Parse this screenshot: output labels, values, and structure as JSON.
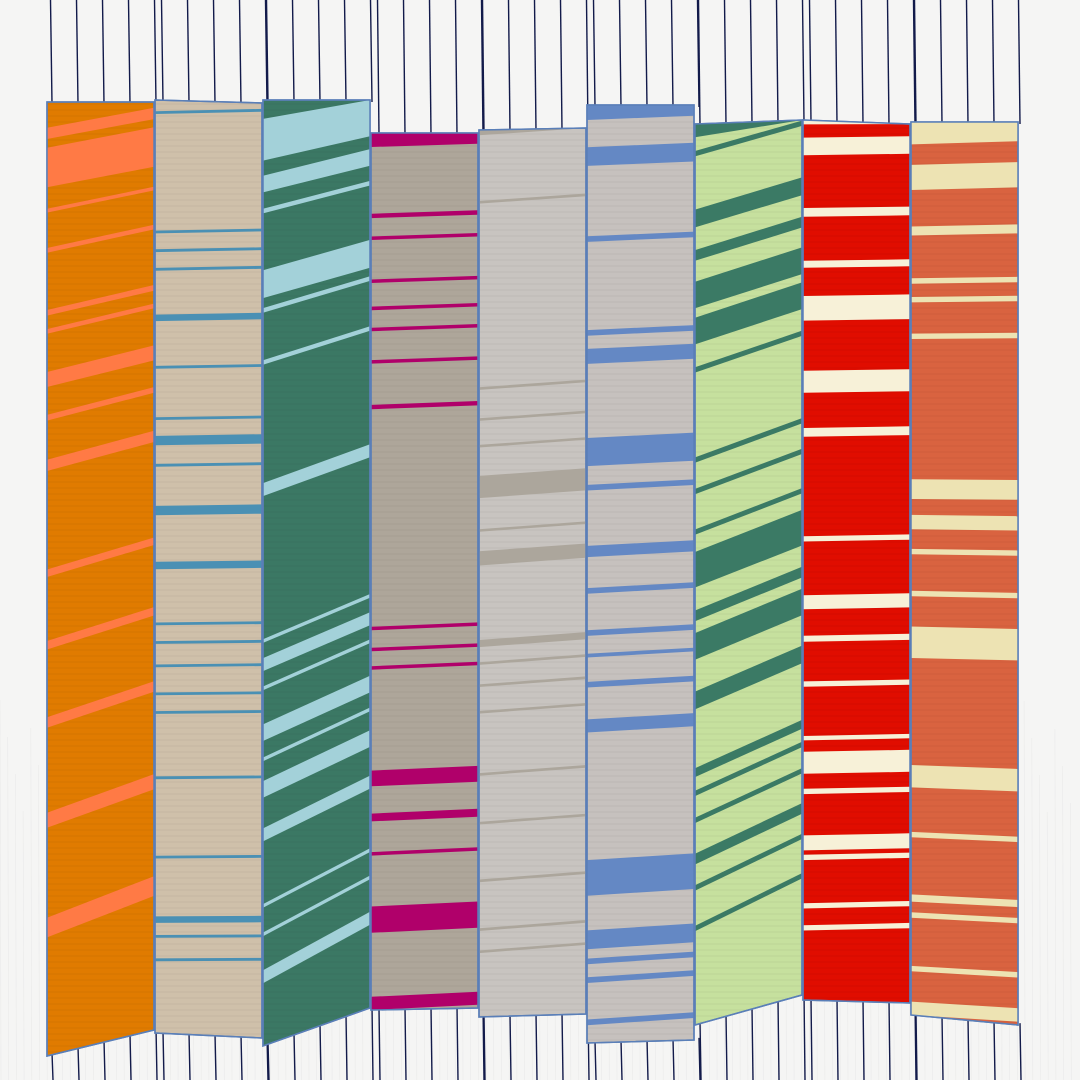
{
  "background": "#f5f5f4",
  "line_color": "#121a4a",
  "panel_border": "#5a7fb8",
  "panels": [
    {
      "name": "orange-panel",
      "base": "#e07b00",
      "stripe": "#ff7a45",
      "stripes": [
        [
          0.027,
          0.012
        ],
        [
          0.048,
          0.042
        ],
        [
          0.112,
          0.004
        ],
        [
          0.153,
          0.005
        ],
        [
          0.218,
          0.006
        ],
        [
          0.238,
          0.005
        ],
        [
          0.283,
          0.016
        ],
        [
          0.328,
          0.006
        ],
        [
          0.375,
          0.012
        ],
        [
          0.49,
          0.008
        ],
        [
          0.565,
          0.009
        ],
        [
          0.645,
          0.011
        ],
        [
          0.745,
          0.016
        ],
        [
          0.855,
          0.021
        ]
      ]
    },
    {
      "name": "tan-panel",
      "base": "#cfc0aa",
      "stripe": "#4a90b4",
      "stripes": [
        [
          0.012,
          0.003
        ],
        [
          0.14,
          0.003
        ],
        [
          0.16,
          0.003
        ],
        [
          0.18,
          0.003
        ],
        [
          0.23,
          0.007
        ],
        [
          0.285,
          0.003
        ],
        [
          0.34,
          0.003
        ],
        [
          0.36,
          0.01
        ],
        [
          0.39,
          0.003
        ],
        [
          0.435,
          0.01
        ],
        [
          0.495,
          0.008
        ],
        [
          0.56,
          0.003
        ],
        [
          0.58,
          0.003
        ],
        [
          0.605,
          0.003
        ],
        [
          0.635,
          0.003
        ],
        [
          0.655,
          0.003
        ],
        [
          0.725,
          0.003
        ],
        [
          0.81,
          0.003
        ],
        [
          0.875,
          0.007
        ],
        [
          0.895,
          0.003
        ],
        [
          0.92,
          0.003
        ]
      ]
    },
    {
      "name": "green-panel",
      "base": "#3b7864",
      "stripe": "#a3d1d9",
      "stripes": [
        [
          0.02,
          0.045
        ],
        [
          0.08,
          0.018
        ],
        [
          0.115,
          0.005
        ],
        [
          0.18,
          0.03
        ],
        [
          0.22,
          0.005
        ],
        [
          0.275,
          0.005
        ],
        [
          0.405,
          0.014
        ],
        [
          0.57,
          0.004
        ],
        [
          0.59,
          0.014
        ],
        [
          0.62,
          0.004
        ],
        [
          0.66,
          0.018
        ],
        [
          0.695,
          0.004
        ],
        [
          0.72,
          0.018
        ],
        [
          0.77,
          0.014
        ],
        [
          0.85,
          0.004
        ],
        [
          0.88,
          0.004
        ],
        [
          0.92,
          0.014
        ]
      ]
    },
    {
      "name": "taupe-panel",
      "base": "#aea69a",
      "stripe": "#b0006a",
      "stripes": [
        [
          0.0,
          0.016
        ],
        [
          0.092,
          0.005
        ],
        [
          0.118,
          0.004
        ],
        [
          0.167,
          0.004
        ],
        [
          0.198,
          0.004
        ],
        [
          0.222,
          0.004
        ],
        [
          0.259,
          0.004
        ],
        [
          0.31,
          0.005
        ],
        [
          0.563,
          0.004
        ],
        [
          0.587,
          0.004
        ],
        [
          0.608,
          0.004
        ],
        [
          0.727,
          0.018
        ],
        [
          0.776,
          0.009
        ],
        [
          0.82,
          0.004
        ],
        [
          0.882,
          0.03
        ],
        [
          0.985,
          0.015
        ]
      ]
    },
    {
      "name": "gray-panel",
      "base": "#c8c4c0",
      "stripe": "#aca69c",
      "stripes": [
        [
          0.0,
          0.006
        ],
        [
          0.08,
          0.003
        ],
        [
          0.29,
          0.003
        ],
        [
          0.325,
          0.003
        ],
        [
          0.355,
          0.003
        ],
        [
          0.39,
          0.025
        ],
        [
          0.45,
          0.003
        ],
        [
          0.475,
          0.016
        ],
        [
          0.575,
          0.008
        ],
        [
          0.6,
          0.003
        ],
        [
          0.625,
          0.003
        ],
        [
          0.655,
          0.003
        ],
        [
          0.725,
          0.003
        ],
        [
          0.78,
          0.003
        ],
        [
          0.845,
          0.003
        ],
        [
          0.9,
          0.003
        ],
        [
          0.925,
          0.003
        ]
      ]
    },
    {
      "name": "gray-blue-panel",
      "base": "#c6c1be",
      "stripe": "#6488c4",
      "stripes": [
        [
          0.0,
          0.016
        ],
        [
          0.045,
          0.02
        ],
        [
          0.14,
          0.006
        ],
        [
          0.24,
          0.006
        ],
        [
          0.26,
          0.016
        ],
        [
          0.355,
          0.03
        ],
        [
          0.405,
          0.006
        ],
        [
          0.47,
          0.012
        ],
        [
          0.515,
          0.006
        ],
        [
          0.56,
          0.006
        ],
        [
          0.585,
          0.004
        ],
        [
          0.615,
          0.006
        ],
        [
          0.655,
          0.014
        ],
        [
          0.805,
          0.038
        ],
        [
          0.88,
          0.02
        ],
        [
          0.91,
          0.006
        ],
        [
          0.93,
          0.006
        ],
        [
          0.975,
          0.006
        ]
      ]
    },
    {
      "name": "lime-panel",
      "base": "#c6e09e",
      "stripe": "#3b7a65",
      "stripes": [
        [
          0.0,
          0.015
        ],
        [
          0.03,
          0.006
        ],
        [
          0.095,
          0.02
        ],
        [
          0.14,
          0.012
        ],
        [
          0.175,
          0.03
        ],
        [
          0.215,
          0.03
        ],
        [
          0.27,
          0.006
        ],
        [
          0.37,
          0.006
        ],
        [
          0.405,
          0.006
        ],
        [
          0.45,
          0.006
        ],
        [
          0.475,
          0.04
        ],
        [
          0.54,
          0.012
        ],
        [
          0.565,
          0.03
        ],
        [
          0.63,
          0.02
        ],
        [
          0.715,
          0.01
        ],
        [
          0.74,
          0.006
        ],
        [
          0.77,
          0.006
        ],
        [
          0.81,
          0.012
        ],
        [
          0.845,
          0.006
        ],
        [
          0.89,
          0.006
        ]
      ]
    },
    {
      "name": "red-panel",
      "base": "#e00d00",
      "stripe": "#f7f1d8",
      "stripes": [
        [
          0.0,
          0.005
        ],
        [
          0.02,
          0.02
        ],
        [
          0.1,
          0.01
        ],
        [
          0.16,
          0.008
        ],
        [
          0.2,
          0.028
        ],
        [
          0.285,
          0.025
        ],
        [
          0.35,
          0.01
        ],
        [
          0.473,
          0.006
        ],
        [
          0.54,
          0.016
        ],
        [
          0.586,
          0.007
        ],
        [
          0.638,
          0.006
        ],
        [
          0.7,
          0.005
        ],
        [
          0.718,
          0.025
        ],
        [
          0.76,
          0.006
        ],
        [
          0.813,
          0.017
        ],
        [
          0.835,
          0.006
        ],
        [
          0.89,
          0.006
        ],
        [
          0.915,
          0.006
        ]
      ]
    },
    {
      "name": "coral-panel",
      "base": "#d96340",
      "stripe": "#ede3b3",
      "stripes": [
        [
          0.0,
          0.025
        ],
        [
          0.048,
          0.028
        ],
        [
          0.117,
          0.01
        ],
        [
          0.175,
          0.006
        ],
        [
          0.196,
          0.006
        ],
        [
          0.237,
          0.006
        ],
        [
          0.4,
          0.022
        ],
        [
          0.44,
          0.016
        ],
        [
          0.478,
          0.006
        ],
        [
          0.525,
          0.006
        ],
        [
          0.565,
          0.035
        ],
        [
          0.72,
          0.025
        ],
        [
          0.795,
          0.006
        ],
        [
          0.865,
          0.008
        ],
        [
          0.885,
          0.006
        ],
        [
          0.945,
          0.006
        ],
        [
          0.985,
          0.015
        ]
      ]
    }
  ]
}
